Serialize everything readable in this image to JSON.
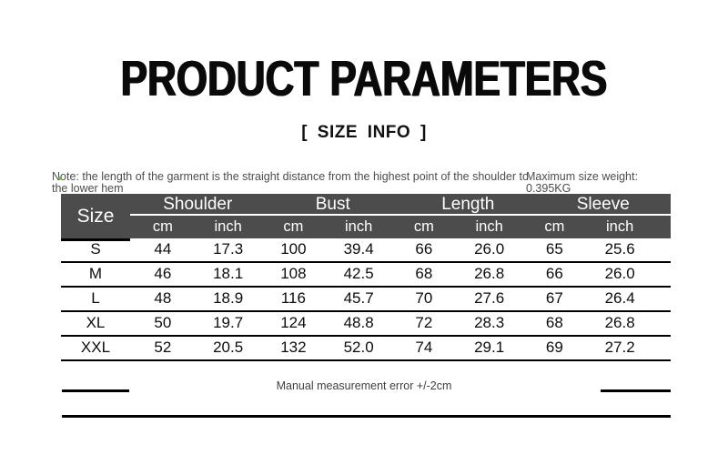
{
  "title": "PRODUCT PARAMETERS",
  "subtitle": "[ SIZE INFO ]",
  "note": "Note: the length of the garment is the straight distance from the highest point of the shoulder to the lower hem",
  "weight": {
    "label": "Maximum size weight:",
    "value": "0.395KG"
  },
  "table": {
    "size_header": "Size",
    "groups": [
      "Shoulder",
      "Bust",
      "Length",
      "Sleeve"
    ],
    "units": [
      "cm",
      "inch",
      "cm",
      "inch",
      "cm",
      "inch",
      "cm",
      "inch"
    ],
    "rows": [
      {
        "size": "S",
        "values": [
          "44",
          "17.3",
          "100",
          "39.4",
          "66",
          "26.0",
          "65",
          "25.6"
        ]
      },
      {
        "size": "M",
        "values": [
          "46",
          "18.1",
          "108",
          "42.5",
          "68",
          "26.8",
          "66",
          "26.0"
        ]
      },
      {
        "size": "L",
        "values": [
          "48",
          "18.9",
          "116",
          "45.7",
          "70",
          "27.6",
          "67",
          "26.4"
        ]
      },
      {
        "size": "XL",
        "values": [
          "50",
          "19.7",
          "124",
          "48.8",
          "72",
          "28.3",
          "68",
          "26.8"
        ]
      },
      {
        "size": "XXL",
        "values": [
          "52",
          "20.5",
          "132",
          "52.0",
          "74",
          "29.1",
          "69",
          "27.2"
        ]
      }
    ]
  },
  "footer_note": "Manual measurement error +/-2cm",
  "colors": {
    "header_bg": "#4c4c4c",
    "header_text": "#ffffff",
    "line_black": "#000000",
    "note_text": "#4d4d4d",
    "green_mark": "#6fae4e"
  }
}
